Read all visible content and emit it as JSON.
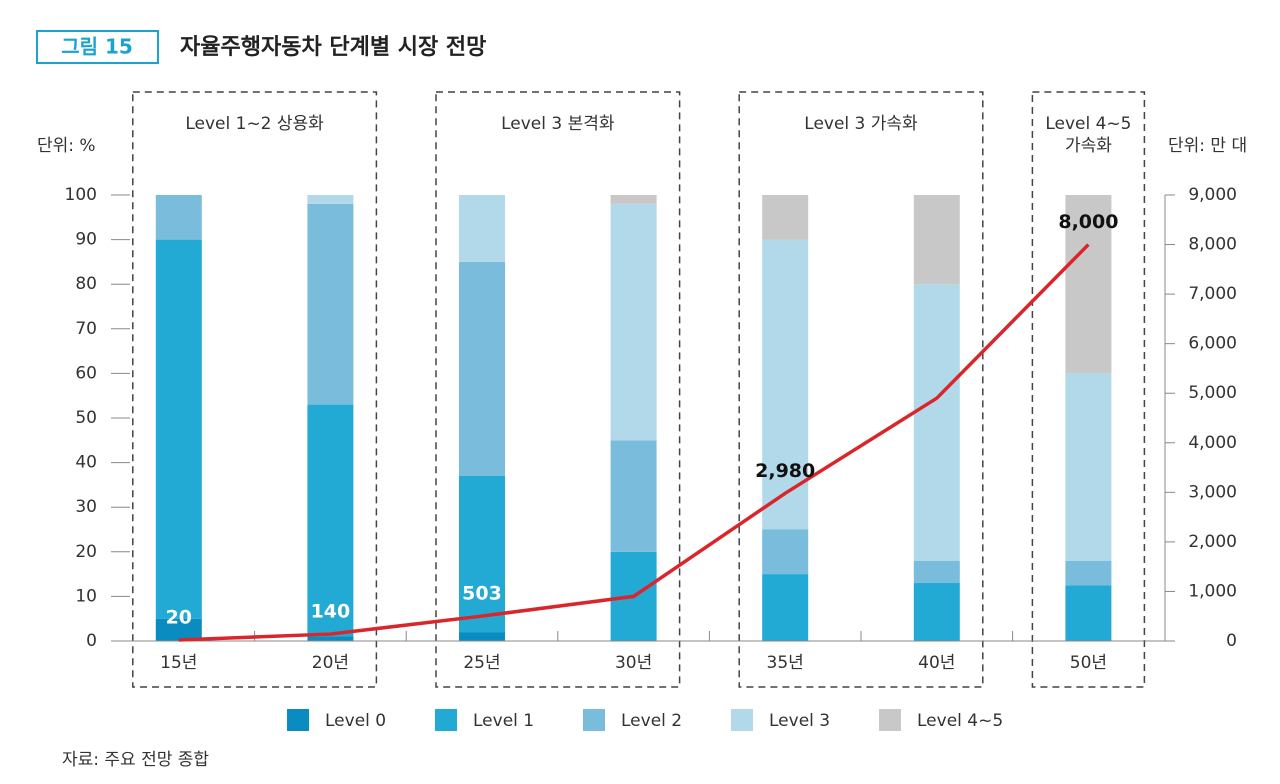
{
  "chart_data": {
    "type": "stacked_bar_line",
    "figure_label": "그림 15",
    "title": "자율주행자동차 단계별 시장 전망",
    "y_unit": "단위: %",
    "y2_unit": "단위: 만 대",
    "source": "자료: 주요 전망 종합",
    "categories": [
      "15년",
      "20년",
      "25년",
      "30년",
      "35년",
      "40년",
      "50년"
    ],
    "slots": [
      0,
      1,
      2,
      3,
      4,
      5,
      6
    ],
    "groups": [
      {
        "lines": [
          "Level 1~2 상용화"
        ],
        "members": [
          0,
          1
        ]
      },
      {
        "lines": [
          "Level 3 본격화"
        ],
        "members": [
          2,
          3
        ]
      },
      {
        "lines": [
          "Level 3 가속화"
        ],
        "members": [
          4,
          5
        ]
      },
      {
        "lines": [
          "Level 4~5",
          "가속화"
        ],
        "members": [
          6,
          6
        ]
      }
    ],
    "series": [
      {
        "name": "Level 0",
        "color": "#0b8cc0",
        "values": [
          5,
          1,
          2,
          0,
          0,
          0,
          0
        ]
      },
      {
        "name": "Level 1",
        "color": "#22a9d4",
        "values": [
          85,
          52,
          35,
          20,
          15,
          13,
          12.5
        ]
      },
      {
        "name": "Level 2",
        "color": "#79bcdc",
        "values": [
          10,
          45,
          48,
          25,
          10,
          5,
          5.5
        ]
      },
      {
        "name": "Level 3",
        "color": "#b1d9ea",
        "values": [
          0,
          2,
          15,
          53,
          65,
          62,
          42
        ]
      },
      {
        "name": "Level 4~5",
        "color": "#c8c8c9",
        "values": [
          0,
          0,
          0,
          2,
          10,
          20,
          40
        ]
      }
    ],
    "line": {
      "color": "#d9262b",
      "axis": "y2",
      "values": [
        20,
        140,
        503,
        900,
        2980,
        4900,
        8000
      ],
      "value_labels": [
        "20",
        "140",
        "503",
        null,
        "2,980",
        null,
        "8,000"
      ]
    },
    "ylim": [
      0,
      100
    ],
    "yticks": [
      0,
      10,
      20,
      30,
      40,
      50,
      60,
      70,
      80,
      90,
      100
    ],
    "y2lim": [
      0,
      9000
    ],
    "y2ticks": [
      0,
      {
        "value": 1000,
        "label": "1,000"
      },
      {
        "value": 2000,
        "label": "2,000"
      },
      {
        "value": 3000,
        "label": "3,000"
      },
      {
        "value": 4000,
        "label": "4,000"
      },
      {
        "value": 5000,
        "label": "5,000"
      },
      {
        "value": 6000,
        "label": "6,000"
      },
      {
        "value": 7000,
        "label": "7,000"
      },
      {
        "value": 8000,
        "label": "8,000"
      },
      {
        "value": 9000,
        "label": "9,000"
      }
    ]
  }
}
